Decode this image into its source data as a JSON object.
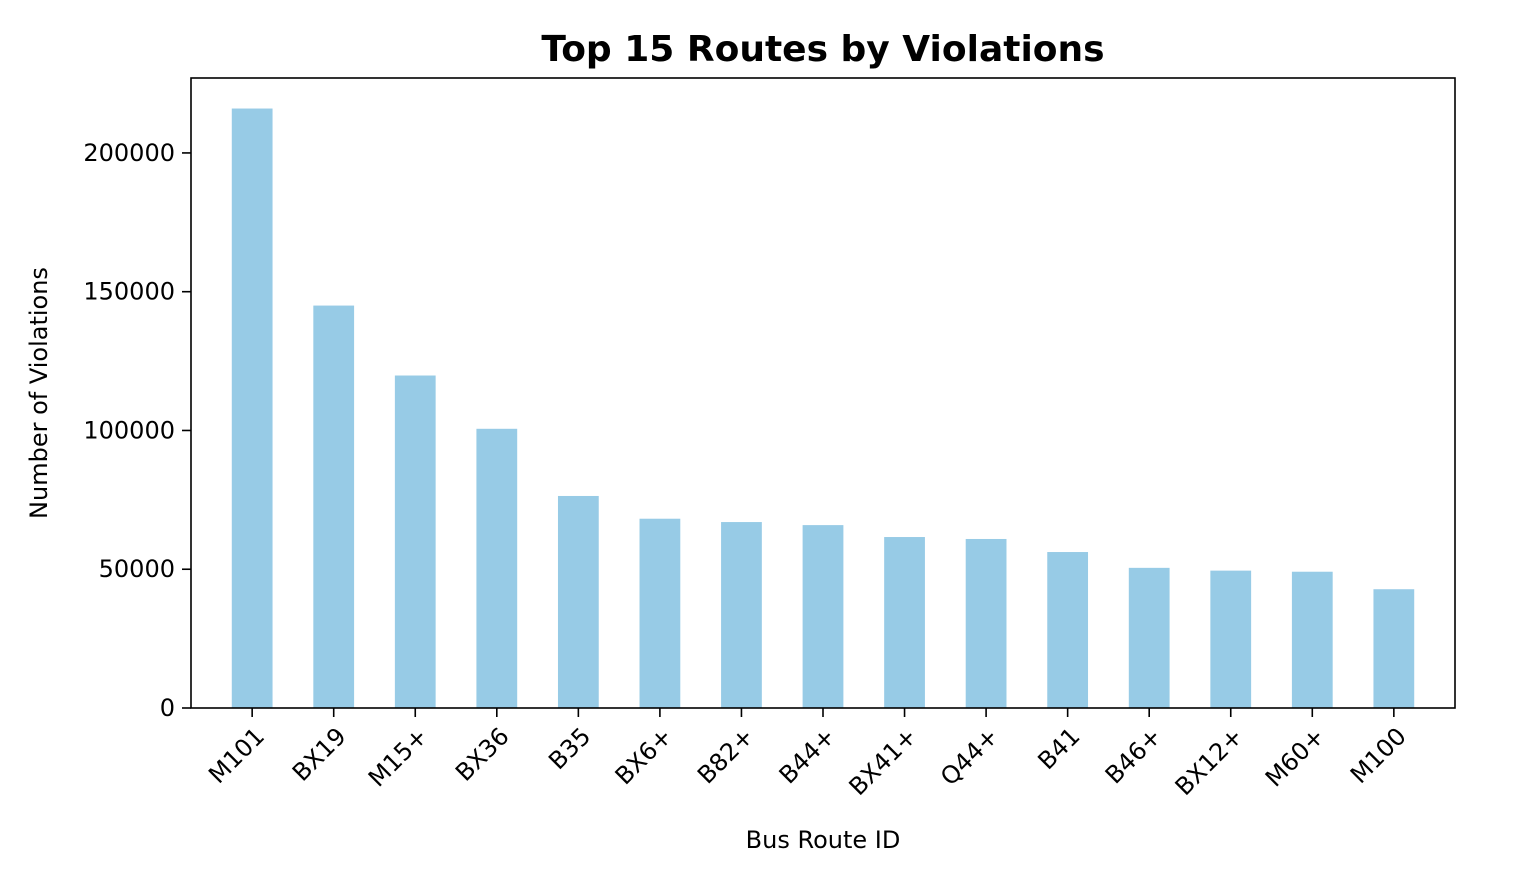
{
  "chart_data": {
    "type": "bar",
    "title": "Top 15 Routes by Violations",
    "xlabel": "Bus Route ID",
    "ylabel": "Number of Violations",
    "categories": [
      "M101",
      "BX19",
      "M15+",
      "BX36",
      "B35",
      "BX6+",
      "B82+",
      "B44+",
      "BX41+",
      "Q44+",
      "B41",
      "B46+",
      "BX12+",
      "M60+",
      "M100"
    ],
    "values": [
      216000,
      145000,
      119800,
      100600,
      76400,
      68200,
      67000,
      65900,
      61600,
      60900,
      56200,
      50500,
      49500,
      49100,
      42800
    ],
    "ylim": [
      0,
      227000
    ],
    "yticks": [
      0,
      50000,
      100000,
      150000,
      200000
    ],
    "bar_color": "#97cbe6",
    "grid": false,
    "legend": "none"
  }
}
